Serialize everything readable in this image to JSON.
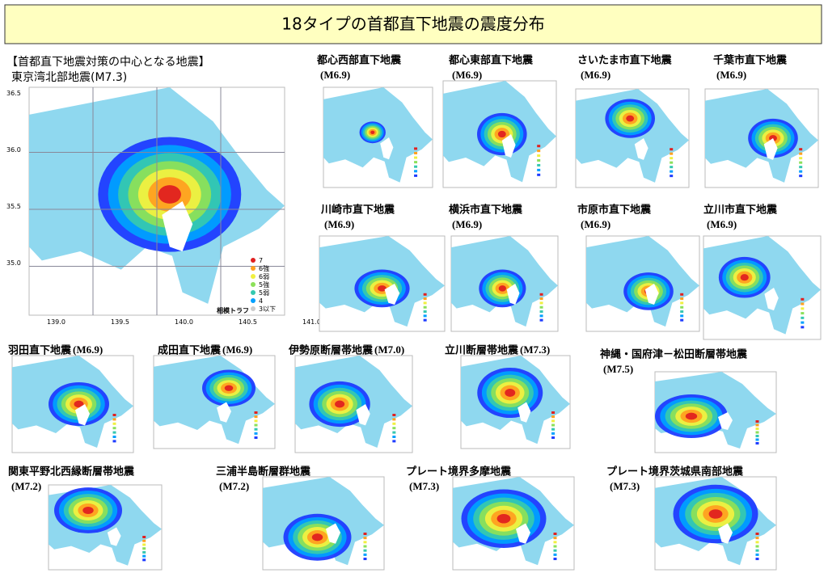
{
  "title": "18タイプの首都直下地震の震度分布",
  "main": {
    "heading": "【首都直下地震対策の中心となる地震】",
    "name": "東京湾北部地震(M7.3)",
    "lat_labels": [
      "36.5",
      "36.0",
      "35.5",
      "35.0"
    ],
    "lon_labels": [
      "139.0",
      "139.5",
      "140.0",
      "140.5",
      "141.0"
    ],
    "legend": [
      "7",
      "6強",
      "6弱",
      "5強",
      "5弱",
      "4",
      "3以下"
    ],
    "trough": "相模トラフ"
  },
  "panels": [
    {
      "name": "都心西部直下地震",
      "magnitude": "(M6.9)"
    },
    {
      "name": "都心東部直下地震",
      "magnitude": "(M6.9)"
    },
    {
      "name": "さいたま市直下地震",
      "magnitude": "(M6.9)"
    },
    {
      "name": "千葉市直下地震",
      "magnitude": "(M6.9)"
    },
    {
      "name": "川崎市直下地震",
      "magnitude": "(M6.9)"
    },
    {
      "name": "横浜市直下地震",
      "magnitude": "(M6.9)"
    },
    {
      "name": "市原市直下地震",
      "magnitude": "(M6.9)"
    },
    {
      "name": "立川市直下地震",
      "magnitude": "(M6.9)"
    },
    {
      "name": "羽田直下地震",
      "magnitude": "(M6.9)"
    },
    {
      "name": "成田直下地震",
      "magnitude": "(M6.9)"
    },
    {
      "name": "伊勢原断層帯地震",
      "magnitude": "(M7.0)"
    },
    {
      "name": "立川断層帯地震",
      "magnitude": "(M7.3)"
    },
    {
      "name": "神縄・国府津－松田断層帯地震",
      "magnitude": "(M7.5)"
    },
    {
      "name": "関東平野北西縁断層帯地震",
      "magnitude": "(M7.2)"
    },
    {
      "name": "三浦半島断層群地震",
      "magnitude": "(M7.2)"
    },
    {
      "name": "プレート境界多摩地震",
      "magnitude": "(M7.3)"
    },
    {
      "name": "プレート境界茨城県南部地震",
      "magnitude": "(M7.3)"
    }
  ]
}
